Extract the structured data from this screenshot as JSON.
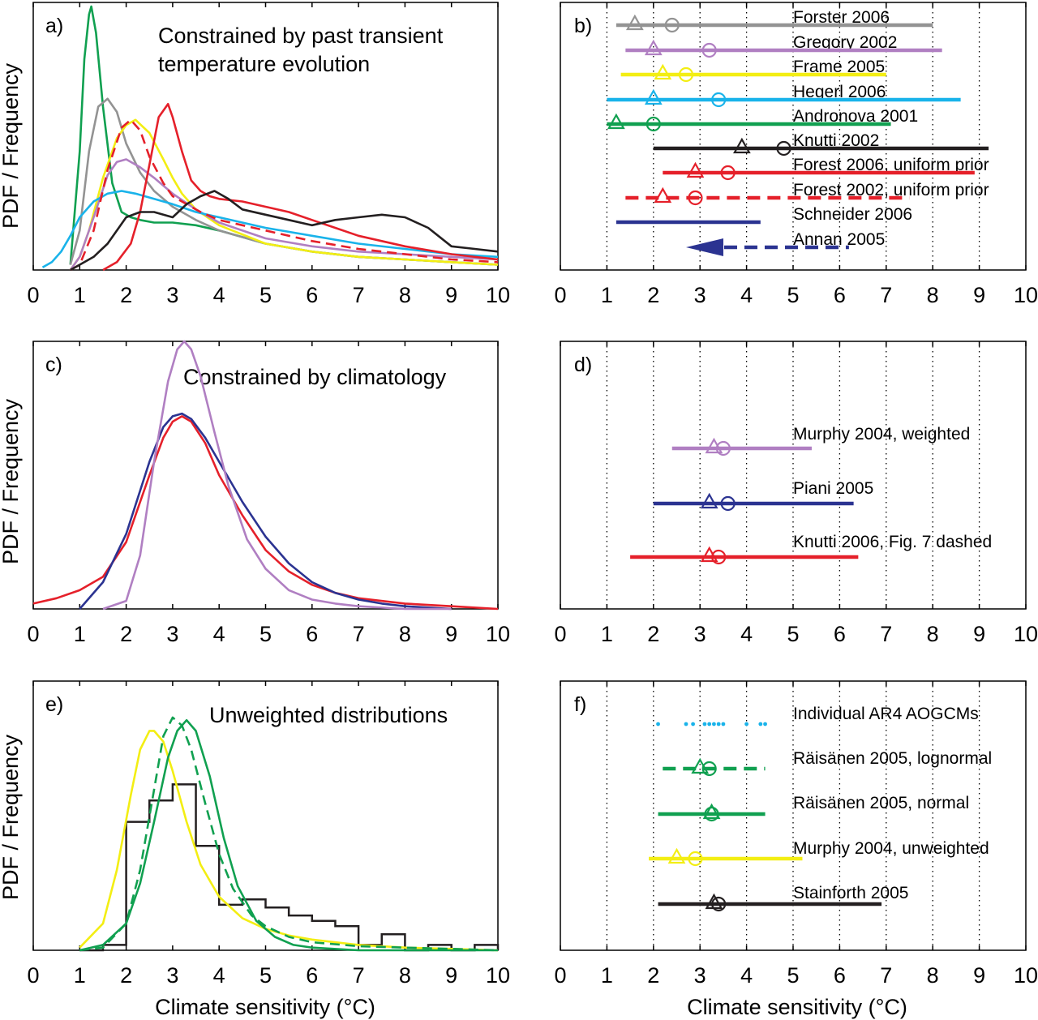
{
  "colors": {
    "gray": "#939393",
    "purple": "#b07fc2",
    "yellow": "#f3ee13",
    "cyan": "#19b3ea",
    "green": "#10a050",
    "black": "#231f20",
    "red": "#e5202a",
    "navy": "#2b3391"
  },
  "figure": {
    "ylabel": "PDF / Frequency",
    "xlabel": "Climate sensitivity (°C)"
  },
  "chart_data": [
    {
      "type": "line",
      "panel": "a)",
      "title_lines": [
        "Constrained by past transient",
        "temperature evolution"
      ],
      "ylabel": "PDF / Frequency",
      "xlabel": "",
      "xlim": [
        0,
        10
      ],
      "xticks": [
        "0",
        "1",
        "2",
        "3",
        "4",
        "5",
        "6",
        "7",
        "8",
        "9",
        "10"
      ],
      "grid": false,
      "series": [
        {
          "color": "green",
          "style": "solid",
          "x": [
            0.8,
            1.0,
            1.1,
            1.2,
            1.25,
            1.35,
            1.5,
            1.7,
            1.9,
            2.1,
            2.3,
            2.6,
            3.0,
            3.5,
            4.0,
            5.0,
            6.0,
            7.0,
            8.0,
            9.0,
            10.0
          ],
          "y": [
            0.02,
            0.45,
            0.8,
            0.97,
            1.0,
            0.9,
            0.62,
            0.33,
            0.22,
            0.2,
            0.19,
            0.18,
            0.18,
            0.17,
            0.15,
            0.1,
            0.07,
            0.05,
            0.04,
            0.03,
            0.02
          ]
        },
        {
          "color": "gray",
          "style": "solid",
          "x": [
            0.8,
            1.0,
            1.2,
            1.4,
            1.6,
            1.8,
            2.0,
            2.3,
            2.6,
            3.0,
            3.5,
            4.0,
            5.0,
            6.0,
            7.0,
            8.0,
            9.0,
            10.0
          ],
          "y": [
            0.02,
            0.15,
            0.45,
            0.62,
            0.65,
            0.6,
            0.48,
            0.37,
            0.3,
            0.24,
            0.19,
            0.15,
            0.1,
            0.07,
            0.05,
            0.04,
            0.03,
            0.02
          ]
        },
        {
          "color": "yellow",
          "style": "solid",
          "x": [
            0.8,
            1.0,
            1.2,
            1.5,
            1.8,
            2.0,
            2.2,
            2.5,
            2.8,
            3.0,
            3.2,
            3.5,
            4.0,
            5.0,
            6.0,
            7.0,
            8.0,
            9.0,
            10.0
          ],
          "y": [
            0.0,
            0.05,
            0.15,
            0.35,
            0.5,
            0.55,
            0.57,
            0.52,
            0.42,
            0.35,
            0.29,
            0.23,
            0.17,
            0.1,
            0.07,
            0.05,
            0.04,
            0.03,
            0.02
          ]
        },
        {
          "color": "purple",
          "style": "solid",
          "x": [
            0.8,
            1.0,
            1.3,
            1.6,
            1.8,
            2.0,
            2.3,
            2.6,
            3.0,
            3.5,
            4.0,
            5.0,
            6.0,
            7.0,
            8.0,
            9.0,
            10.0
          ],
          "y": [
            0.0,
            0.05,
            0.2,
            0.36,
            0.41,
            0.42,
            0.39,
            0.35,
            0.29,
            0.23,
            0.18,
            0.12,
            0.09,
            0.07,
            0.06,
            0.05,
            0.04
          ]
        },
        {
          "color": "cyan",
          "style": "solid",
          "x": [
            0.2,
            0.4,
            0.6,
            0.8,
            1.0,
            1.3,
            1.6,
            1.9,
            2.2,
            2.6,
            3.0,
            3.5,
            4.0,
            5.0,
            6.0,
            7.0,
            8.0,
            9.0,
            10.0
          ],
          "y": [
            0.01,
            0.03,
            0.07,
            0.13,
            0.2,
            0.26,
            0.29,
            0.3,
            0.29,
            0.27,
            0.25,
            0.22,
            0.2,
            0.16,
            0.13,
            0.1,
            0.08,
            0.06,
            0.05
          ]
        },
        {
          "color": "red",
          "style": "dashed",
          "x": [
            0.8,
            1.0,
            1.3,
            1.6,
            1.9,
            2.1,
            2.3,
            2.5,
            2.8,
            3.0,
            3.3,
            3.6,
            4.0,
            4.5,
            5.0,
            6.0,
            7.0,
            8.0,
            9.0,
            10.0
          ],
          "y": [
            0.0,
            0.02,
            0.15,
            0.38,
            0.54,
            0.57,
            0.53,
            0.43,
            0.33,
            0.28,
            0.25,
            0.22,
            0.19,
            0.17,
            0.15,
            0.11,
            0.08,
            0.06,
            0.04,
            0.03
          ]
        },
        {
          "color": "red",
          "style": "solid",
          "x": [
            1.5,
            1.8,
            2.1,
            2.3,
            2.5,
            2.7,
            2.9,
            3.0,
            3.2,
            3.4,
            3.6,
            3.8,
            4.0,
            4.5,
            5.0,
            5.5,
            6.0,
            6.5,
            7.0,
            8.0,
            9.0,
            10.0
          ],
          "y": [
            0.0,
            0.03,
            0.1,
            0.22,
            0.4,
            0.58,
            0.63,
            0.58,
            0.45,
            0.34,
            0.3,
            0.28,
            0.27,
            0.26,
            0.24,
            0.22,
            0.19,
            0.16,
            0.13,
            0.09,
            0.06,
            0.04
          ]
        },
        {
          "color": "black",
          "style": "solid",
          "x": [
            0.8,
            1.0,
            1.3,
            1.6,
            2.0,
            2.3,
            2.6,
            3.0,
            3.3,
            3.6,
            3.9,
            4.2,
            4.5,
            5.0,
            5.5,
            6.0,
            6.5,
            7.0,
            7.5,
            8.0,
            8.5,
            9.0,
            9.5,
            10.0
          ],
          "y": [
            0.0,
            0.02,
            0.05,
            0.1,
            0.2,
            0.22,
            0.22,
            0.2,
            0.25,
            0.28,
            0.3,
            0.27,
            0.23,
            0.21,
            0.19,
            0.17,
            0.19,
            0.2,
            0.21,
            0.2,
            0.16,
            0.09,
            0.08,
            0.07
          ]
        }
      ]
    },
    {
      "type": "interval",
      "panel": "b)",
      "xlim": [
        0,
        10
      ],
      "xticks": [
        "0",
        "1",
        "2",
        "3",
        "4",
        "5",
        "6",
        "7",
        "8",
        "9",
        "10"
      ],
      "grid": "vertical dotted",
      "rows": [
        {
          "label": "Forster 2006",
          "color": "gray",
          "style": "solid",
          "range": [
            1.2,
            8.0
          ],
          "triangle": 1.6,
          "circle": 2.4
        },
        {
          "label": "Gregory 2002",
          "color": "purple",
          "style": "solid",
          "range": [
            1.4,
            8.2
          ],
          "triangle": 2.0,
          "circle": 3.2
        },
        {
          "label": "Frame 2005",
          "color": "yellow",
          "style": "solid",
          "range": [
            1.3,
            7.0
          ],
          "triangle": 2.2,
          "circle": 2.7
        },
        {
          "label": "Hegerl 2006",
          "color": "cyan",
          "style": "solid",
          "range": [
            1.0,
            8.6
          ],
          "triangle": 2.0,
          "circle": 3.4
        },
        {
          "label": "Andronova 2001",
          "color": "green",
          "style": "solid",
          "range": [
            1.0,
            7.1
          ],
          "triangle": 1.2,
          "circle": 2.0
        },
        {
          "label": "Knutti 2002",
          "color": "black",
          "style": "solid",
          "range": [
            2.0,
            9.2
          ],
          "triangle": 3.9,
          "circle": 4.8
        },
        {
          "label": "Forest 2006, uniform prior",
          "color": "red",
          "style": "solid",
          "range": [
            2.2,
            8.9
          ],
          "triangle": 2.9,
          "circle": 3.6
        },
        {
          "label": "Forest 2002, uniform prior",
          "color": "red",
          "style": "dashed",
          "range": [
            1.4,
            7.5
          ],
          "triangle": 2.2,
          "circle": 2.9
        },
        {
          "label": "Schneider 2006",
          "color": "navy",
          "style": "solid",
          "range": [
            1.2,
            4.3
          ],
          "triangle": null,
          "circle": null
        },
        {
          "label": "Annan 2005",
          "color": "navy",
          "style": "dashed-arrow",
          "range": [
            2.7,
            6.2
          ],
          "triangle": null,
          "circle": null
        }
      ]
    },
    {
      "type": "line",
      "panel": "c)",
      "title_lines": [
        "Constrained by climatology"
      ],
      "ylabel": "PDF / Frequency",
      "xlabel": "",
      "xlim": [
        0,
        10
      ],
      "xticks": [
        "0",
        "1",
        "2",
        "3",
        "4",
        "5",
        "6",
        "7",
        "8",
        "9",
        "10"
      ],
      "grid": false,
      "series": [
        {
          "color": "red",
          "style": "solid",
          "x": [
            0.0,
            0.5,
            1.0,
            1.5,
            2.0,
            2.5,
            2.8,
            3.0,
            3.2,
            3.4,
            3.7,
            4.0,
            4.5,
            5.0,
            5.5,
            6.0,
            6.5,
            7.0,
            8.0,
            9.0,
            10.0
          ],
          "y": [
            0.02,
            0.04,
            0.07,
            0.12,
            0.25,
            0.5,
            0.64,
            0.7,
            0.72,
            0.7,
            0.62,
            0.5,
            0.35,
            0.22,
            0.14,
            0.09,
            0.06,
            0.04,
            0.02,
            0.01,
            0.0
          ]
        },
        {
          "color": "navy",
          "style": "solid",
          "x": [
            1.0,
            1.5,
            2.0,
            2.5,
            2.8,
            3.0,
            3.2,
            3.4,
            3.7,
            4.0,
            4.5,
            5.0,
            5.5,
            6.0,
            6.5,
            7.0,
            7.5,
            8.0,
            9.0
          ],
          "y": [
            0.0,
            0.1,
            0.28,
            0.55,
            0.68,
            0.72,
            0.73,
            0.71,
            0.64,
            0.55,
            0.4,
            0.27,
            0.17,
            0.1,
            0.06,
            0.035,
            0.02,
            0.01,
            0.0
          ]
        },
        {
          "color": "purple",
          "style": "solid",
          "x": [
            1.5,
            2.0,
            2.3,
            2.6,
            2.9,
            3.1,
            3.25,
            3.4,
            3.6,
            3.9,
            4.2,
            4.6,
            5.0,
            5.5,
            6.0,
            6.5,
            7.0,
            8.0,
            9.0
          ],
          "y": [
            0.0,
            0.03,
            0.2,
            0.55,
            0.85,
            0.97,
            1.0,
            0.97,
            0.87,
            0.66,
            0.46,
            0.26,
            0.15,
            0.07,
            0.035,
            0.02,
            0.01,
            0.0,
            0.0
          ]
        }
      ]
    },
    {
      "type": "interval",
      "panel": "d)",
      "xlim": [
        0,
        10
      ],
      "xticks": [
        "0",
        "1",
        "2",
        "3",
        "4",
        "5",
        "6",
        "7",
        "8",
        "9",
        "10"
      ],
      "grid": "vertical dotted",
      "rows": [
        {
          "label": "Murphy 2004, weighted",
          "color": "purple",
          "style": "solid",
          "range": [
            2.4,
            5.4
          ],
          "triangle": 3.3,
          "circle": 3.5
        },
        {
          "label": "Piani 2005",
          "color": "navy",
          "style": "solid",
          "range": [
            2.0,
            6.3
          ],
          "triangle": 3.2,
          "circle": 3.6
        },
        {
          "label": "Knutti 2006, Fig. 7 dashed",
          "color": "red",
          "style": "solid",
          "range": [
            1.5,
            6.4
          ],
          "triangle": 3.2,
          "circle": 3.4
        }
      ]
    },
    {
      "type": "line",
      "panel": "e)",
      "title_lines": [
        "Unweighted distributions"
      ],
      "ylabel": "PDF / Frequency",
      "xlabel": "Climate sensitivity (°C)",
      "xlim": [
        0,
        10
      ],
      "xticks": [
        "0",
        "1",
        "2",
        "3",
        "4",
        "5",
        "6",
        "7",
        "8",
        "9",
        "10"
      ],
      "grid": false,
      "histogram": {
        "color": "black",
        "bin_edges": [
          1.0,
          1.5,
          2.0,
          2.5,
          3.0,
          3.5,
          4.0,
          4.5,
          5.0,
          5.5,
          6.0,
          6.5,
          7.0,
          7.5,
          8.0,
          8.5,
          9.0,
          9.5,
          10.0
        ],
        "heights": [
          0.0,
          0.02,
          0.48,
          0.56,
          0.62,
          0.39,
          0.17,
          0.19,
          0.16,
          0.13,
          0.11,
          0.09,
          0.02,
          0.06,
          0.0,
          0.02,
          0.0,
          0.02
        ]
      },
      "series": [
        {
          "color": "yellow",
          "style": "solid",
          "x": [
            1.0,
            1.5,
            1.8,
            2.1,
            2.3,
            2.5,
            2.6,
            2.8,
            3.0,
            3.3,
            3.6,
            4.0,
            4.5,
            5.0,
            5.5,
            6.0,
            7.0,
            8.0,
            9.0,
            10.0
          ],
          "y": [
            0.01,
            0.1,
            0.3,
            0.58,
            0.75,
            0.82,
            0.82,
            0.78,
            0.67,
            0.48,
            0.32,
            0.2,
            0.12,
            0.08,
            0.055,
            0.04,
            0.02,
            0.01,
            0.005,
            0.0
          ]
        },
        {
          "color": "green",
          "style": "solid",
          "x": [
            1.0,
            1.5,
            2.0,
            2.3,
            2.6,
            2.9,
            3.1,
            3.3,
            3.5,
            3.8,
            4.1,
            4.4,
            4.8,
            5.2,
            5.6,
            6.0,
            7.0,
            8.0,
            10.0
          ],
          "y": [
            0.0,
            0.02,
            0.1,
            0.25,
            0.48,
            0.72,
            0.82,
            0.86,
            0.82,
            0.65,
            0.42,
            0.24,
            0.11,
            0.05,
            0.02,
            0.01,
            0.0,
            0.0,
            0.0
          ]
        },
        {
          "color": "green",
          "style": "dashed",
          "x": [
            1.0,
            1.5,
            2.0,
            2.3,
            2.6,
            2.8,
            3.0,
            3.2,
            3.4,
            3.7,
            4.0,
            4.3,
            4.7,
            5.0,
            5.5,
            6.0,
            7.0,
            8.0,
            9.0,
            10.0
          ],
          "y": [
            0.0,
            0.01,
            0.1,
            0.3,
            0.6,
            0.8,
            0.87,
            0.84,
            0.75,
            0.55,
            0.36,
            0.23,
            0.13,
            0.09,
            0.05,
            0.03,
            0.015,
            0.01,
            0.005,
            0.0
          ]
        }
      ]
    },
    {
      "type": "interval",
      "panel": "f)",
      "xlabel": "Climate sensitivity (°C)",
      "xlim": [
        0,
        10
      ],
      "xticks": [
        "0",
        "1",
        "2",
        "3",
        "4",
        "5",
        "6",
        "7",
        "8",
        "9",
        "10"
      ],
      "grid": "vertical dotted",
      "rows": [
        {
          "label": "Individual AR4 AOGCMs",
          "color": "cyan",
          "style": "points",
          "points": [
            2.1,
            2.7,
            2.85,
            3.1,
            3.2,
            3.3,
            3.4,
            3.5,
            4.0,
            4.3,
            4.4
          ]
        },
        {
          "label": "Räisänen 2005, lognormal",
          "color": "green",
          "style": "dashed",
          "range": [
            2.2,
            4.4
          ],
          "triangle": 3.0,
          "circle": 3.2
        },
        {
          "label": "Räisänen 2005, normal",
          "color": "green",
          "style": "solid",
          "range": [
            2.1,
            4.4
          ],
          "triangle": 3.25,
          "circle": 3.25
        },
        {
          "label": "Murphy 2004, unweighted",
          "color": "yellow",
          "style": "solid",
          "range": [
            1.9,
            5.2
          ],
          "triangle": 2.5,
          "circle": 2.9
        },
        {
          "label": "Stainforth 2005",
          "color": "black",
          "style": "solid",
          "range": [
            2.1,
            6.9
          ],
          "triangle": 3.3,
          "circle": 3.4
        }
      ]
    }
  ]
}
